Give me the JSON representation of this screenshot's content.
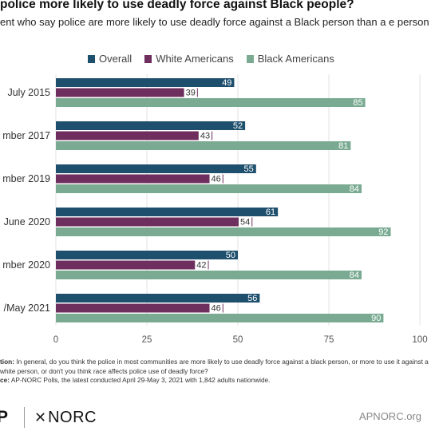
{
  "title": "police more likely to use deadly force against Black people?",
  "subtitle": "ent who say police are more likely to use deadly force against a Black person than a e person",
  "notes": {
    "question_label": "tion:",
    "question_text": " In general, do you think the police in most communities are more likely to use deadly force against a black person, or more to use it against a white person, or don't you think race affects police use of deadly force?",
    "source_label": "ce:",
    "source_text": " AP-NORC Polls, the latest conducted April 29-May 3, 2021 with 1,842 adults nationwide."
  },
  "brand": {
    "ap": "P",
    "norc": "NORC",
    "site": "APNORC.org"
  },
  "chart_data": {
    "type": "bar",
    "orientation": "horizontal",
    "categories": [
      "July 2015",
      "mber 2017",
      "mber 2019",
      "June 2020",
      "mber 2020",
      "/May 2021"
    ],
    "series": [
      {
        "name": "Overall",
        "color": "#1e4f6d",
        "values": [
          49,
          52,
          55,
          61,
          50,
          56
        ]
      },
      {
        "name": "White Americans",
        "color": "#6e2e5e",
        "values": [
          39,
          43,
          46,
          54,
          42,
          46
        ]
      },
      {
        "name": "Black Americans",
        "color": "#7aab92",
        "values": [
          85,
          81,
          84,
          92,
          84,
          90
        ]
      }
    ],
    "xlim": [
      0,
      100
    ],
    "xticks": [
      0,
      25,
      50,
      75,
      100
    ],
    "grid": true,
    "legend": "top"
  }
}
